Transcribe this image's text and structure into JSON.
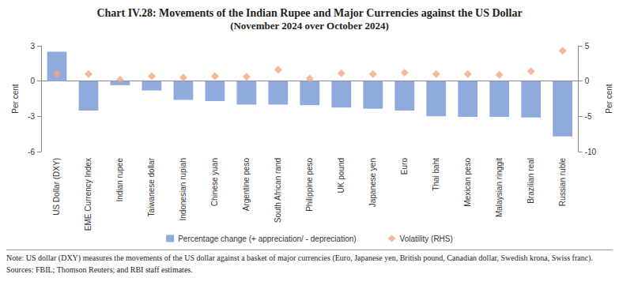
{
  "chart_data": {
    "type": "bar",
    "title": "Chart IV.28: Movements of the Indian Rupee and Major Currencies against the US Dollar",
    "subtitle": "(November 2024 over October 2024)",
    "categories": [
      "US Dollar (DXY)",
      "EME Currency Index",
      "Indian rupee",
      "Taiwanese dollar",
      "Indonesian rupiah",
      "Chinese yuan",
      "Argentine peso",
      "South African rand",
      "Philippine peso",
      "UK pound",
      "Japanese yen",
      "Euro",
      "Thai baht",
      "Mexican peso",
      "Malaysian ringgit",
      "Brazilian real",
      "Russian ruble"
    ],
    "series": [
      {
        "name": "Percentage change (+ appreciation/ - depreciation)",
        "type": "bar",
        "color": "#8faadc",
        "values": [
          2.5,
          -2.5,
          -0.35,
          -0.8,
          -1.6,
          -1.7,
          -2.0,
          -2.0,
          -2.05,
          -2.25,
          -2.35,
          -2.5,
          -3.0,
          -3.05,
          -3.05,
          -3.1,
          -4.7
        ]
      },
      {
        "name": "Volatility (RHS)",
        "type": "scatter",
        "marker": "diamond",
        "color": "#f4a582",
        "axis": "y2",
        "values": [
          1.0,
          1.0,
          0.2,
          0.7,
          0.5,
          0.7,
          0.6,
          1.6,
          0.35,
          1.1,
          1.0,
          1.2,
          1.0,
          1.0,
          0.9,
          1.4,
          4.3
        ]
      }
    ],
    "ylabel": "Per cent",
    "y2label": "Per cent",
    "ylim": [
      -6,
      3
    ],
    "yticks": [
      -6,
      -3,
      0,
      3
    ],
    "y2lim": [
      -10,
      5
    ],
    "y2ticks": [
      -10,
      -5,
      0,
      5
    ],
    "grid": false,
    "legend": "bottom",
    "note": "Note: US dollar (DXY) measures the movements of the US dollar against a basket of major currencies (Euro, Japanese yen, British pound, Canadian dollar, Swedish krona, Swiss franc).",
    "sources": "Sources: FBIL; Thomson Reuters; and RBI staff estimates."
  }
}
